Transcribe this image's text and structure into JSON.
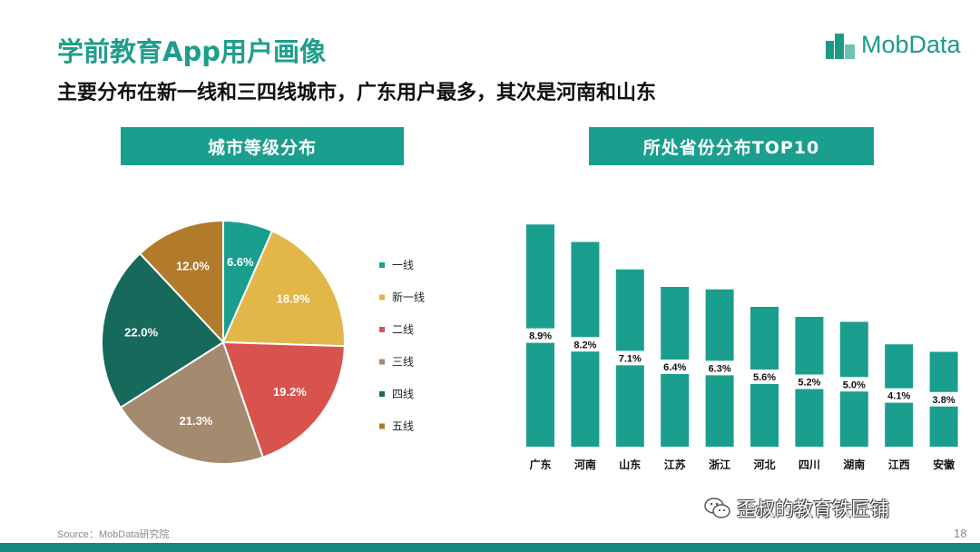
{
  "header": {
    "title": "学前教育App用户画像",
    "subtitle": "主要分布在新一线和三四线城市，广东用户最多，其次是河南和山东",
    "logo_text": "MobData",
    "brand_color": "#1a9e8e"
  },
  "panels": {
    "pie_title": "城市等级分布",
    "bar_title": "所处省份分布TOP10"
  },
  "chart_data": [
    {
      "type": "pie",
      "title": "城市等级分布",
      "categories": [
        "一线",
        "新一线",
        "二线",
        "三线",
        "四线",
        "五线"
      ],
      "values": [
        6.6,
        18.9,
        19.2,
        21.3,
        22.0,
        12.0
      ],
      "labels": [
        "6.6%",
        "18.9%",
        "19.2%",
        "21.3%",
        "22.0%",
        "12.0%"
      ],
      "colors": [
        "#1a9e8e",
        "#e3b64a",
        "#d9534d",
        "#a48b6f",
        "#17695b",
        "#b17b2b"
      ],
      "legend": "right"
    },
    {
      "type": "bar",
      "title": "所处省份分布TOP10",
      "categories": [
        "广东",
        "河南",
        "山东",
        "江苏",
        "浙江",
        "河北",
        "四川",
        "湖南",
        "江西",
        "安徽"
      ],
      "values": [
        8.9,
        8.2,
        7.1,
        6.4,
        6.3,
        5.6,
        5.2,
        5.0,
        4.1,
        3.8
      ],
      "labels": [
        "8.9%",
        "8.2%",
        "7.1%",
        "6.4%",
        "6.3%",
        "5.6%",
        "5.2%",
        "5.0%",
        "4.1%",
        "3.8%"
      ],
      "color": "#1a9e8e"
    }
  ],
  "footer": {
    "source": "Source：MobData研究院",
    "page_number": "18",
    "watermark": "歪叔的教育铁匠铺"
  }
}
